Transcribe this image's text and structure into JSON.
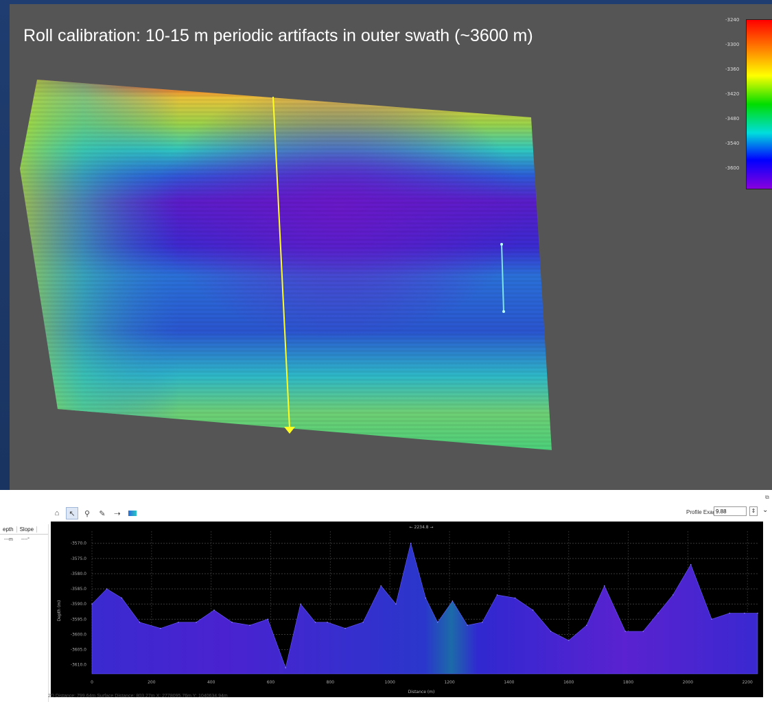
{
  "slide": {
    "title": "Roll calibration: 10-15 m periodic artifacts in outer swath (~3600 m)"
  },
  "colorbar": {
    "ticks": [
      "-3240",
      "-3300",
      "-3360",
      "-3420",
      "-3480",
      "-3540",
      "-3600"
    ],
    "colors": [
      "#ff0000",
      "#ff8000",
      "#ffff00",
      "#00dd00",
      "#00dddd",
      "#0000ff",
      "#8800dd"
    ]
  },
  "toolbar": {
    "icons": [
      "home-icon",
      "pointer-icon",
      "zoom-icon",
      "ruler-icon",
      "profile-tool-icon",
      "colormap-icon"
    ],
    "exag_label": "Profile Exag:",
    "exag_value": "9.88"
  },
  "side_table": {
    "headers": [
      "epth",
      "Slope"
    ],
    "row": [
      "---m",
      "----°"
    ]
  },
  "profile": {
    "top_label": "← 2234.8 →",
    "ylabel": "Depth (m)",
    "xlabel": "Distance (m)"
  },
  "chart_data": {
    "type": "area",
    "x": [
      0,
      50,
      100,
      160,
      230,
      290,
      350,
      410,
      470,
      530,
      590,
      650,
      700,
      750,
      790,
      850,
      910,
      970,
      1020,
      1070,
      1120,
      1160,
      1210,
      1260,
      1310,
      1360,
      1420,
      1480,
      1540,
      1600,
      1660,
      1720,
      1790,
      1850,
      1900,
      1950,
      2010,
      2080,
      2140,
      2190,
      2234
    ],
    "y": [
      -3590,
      -3585,
      -3588,
      -3596,
      -3598,
      -3596,
      -3596,
      -3592,
      -3596,
      -3597,
      -3595,
      -3611,
      -3590,
      -3596,
      -3596,
      -3598,
      -3596,
      -3584,
      -3590,
      -3570,
      -3588,
      -3596,
      -3589,
      -3597,
      -3596,
      -3587,
      -3588,
      -3592,
      -3599,
      -3602,
      -3597,
      -3584,
      -3599,
      -3599,
      -3593,
      -3587,
      -3577,
      -3595,
      -3593,
      -3593,
      -3593
    ],
    "xlabel": "Distance (m)",
    "ylabel": "Depth (m)",
    "xlim": [
      0,
      2234
    ],
    "ylim": [
      -3613,
      -3566
    ],
    "xticks": [
      "0",
      "200",
      "400",
      "600",
      "800",
      "1000",
      "1200",
      "1400",
      "1600",
      "1800",
      "2000",
      "2200"
    ],
    "yticks": [
      "-3570.0",
      "-3575.0",
      "-3580.0",
      "-3585.0",
      "-3590.0",
      "-3595.0",
      "-3600.0",
      "-3605.0",
      "-3610.0"
    ],
    "grid": true
  },
  "status": {
    "text": "2D Distance: 799.64m  Surface Distance: 803.27m  X: 2778095.76m  Y: 1040634.94m"
  }
}
